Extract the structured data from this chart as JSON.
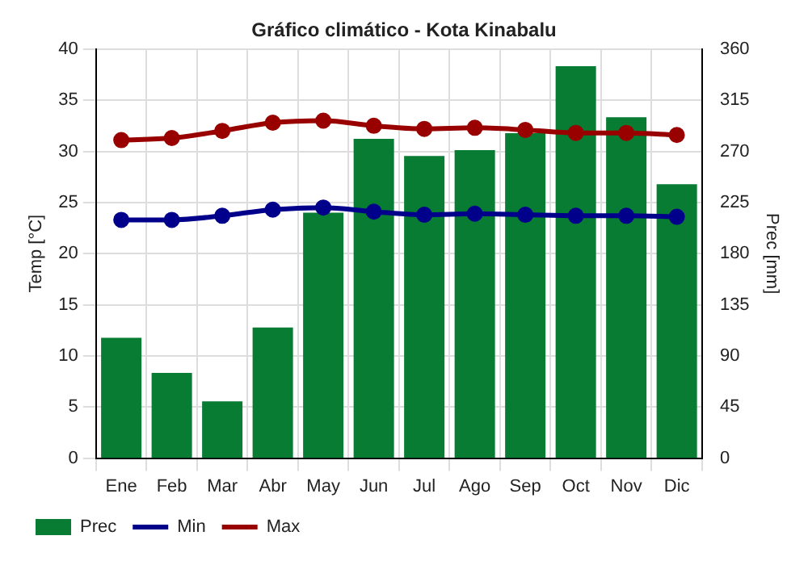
{
  "chart_data": {
    "type": "bar",
    "title": "Gráfico climático - Kota Kinabalu",
    "categories": [
      "Ene",
      "Feb",
      "Mar",
      "Abr",
      "May",
      "Jun",
      "Jul",
      "Ago",
      "Sep",
      "Oct",
      "Nov",
      "Dic"
    ],
    "series": [
      {
        "name": "Prec",
        "axis": "y2",
        "color": "#077c32",
        "values": [
          106,
          75,
          50,
          115,
          216,
          281,
          266,
          271,
          286,
          345,
          300,
          241
        ]
      },
      {
        "name": "Min",
        "type": "line",
        "color": "#00008b",
        "values": [
          23.3,
          23.3,
          23.7,
          24.3,
          24.5,
          24.1,
          23.8,
          23.9,
          23.8,
          23.7,
          23.7,
          23.6
        ]
      },
      {
        "name": "Max",
        "type": "line",
        "color": "#990000",
        "values": [
          31.1,
          31.3,
          32.0,
          32.8,
          33.0,
          32.5,
          32.2,
          32.3,
          32.1,
          31.8,
          31.8,
          31.6
        ]
      }
    ],
    "ylabel": "Temp [°C]",
    "y2label": "Prec [mm]",
    "ylim": [
      0,
      40
    ],
    "yticks": [
      0,
      5,
      10,
      15,
      20,
      25,
      30,
      35,
      40
    ],
    "y2lim": [
      0,
      360
    ],
    "y2ticks": [
      0,
      45,
      90,
      135,
      180,
      225,
      270,
      315,
      360
    ],
    "grid": true,
    "legend": "bottom left",
    "marker": "circle",
    "line_style": "solid"
  }
}
